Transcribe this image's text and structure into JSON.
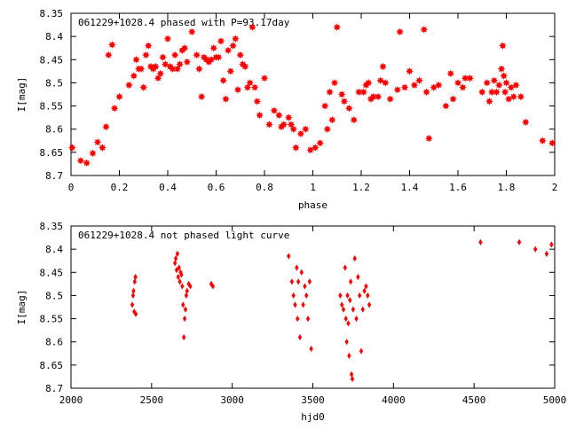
{
  "chart_data": [
    {
      "type": "scatter",
      "title": "061229+1028.4 phased with P=93.17day",
      "xlabel": "phase",
      "ylabel": "I[mag]",
      "xlim": [
        0,
        2
      ],
      "ylim": [
        8.35,
        8.7
      ],
      "y_inverted": true,
      "grid": false,
      "xticks": [
        0,
        0.2,
        0.4,
        0.6,
        0.8,
        1,
        1.2,
        1.4,
        1.6,
        1.8,
        2
      ],
      "xtick_labels": [
        "0",
        "0.2",
        "0.4",
        "0.6",
        "0.8",
        "1",
        "1.2",
        "1.4",
        "1.6",
        "1.8",
        "2"
      ],
      "yticks": [
        8.35,
        8.4,
        8.45,
        8.5,
        8.55,
        8.6,
        8.65,
        8.7
      ],
      "ytick_labels": [
        "8.35",
        "8.4",
        "8.45",
        "8.5",
        "8.55",
        "8.6",
        "8.65",
        "8.7"
      ],
      "marker_color": "#ff0000",
      "marker": "star",
      "series": [
        {
          "x": [
            0.005,
            0.04,
            0.065,
            0.09,
            0.11,
            0.13,
            0.145,
            0.155,
            0.17,
            0.18,
            0.2,
            0.24,
            0.26,
            0.27,
            0.28,
            0.29,
            0.3,
            0.31,
            0.32,
            0.33,
            0.34,
            0.35,
            0.36,
            0.37,
            0.38,
            0.39,
            0.4,
            0.41,
            0.42,
            0.43,
            0.44,
            0.45,
            0.46,
            0.47,
            0.48,
            0.5,
            0.52,
            0.53,
            0.54,
            0.55,
            0.56,
            0.57,
            0.58,
            0.59,
            0.6,
            0.61,
            0.62,
            0.63,
            0.64,
            0.65,
            0.66,
            0.67,
            0.68,
            0.69,
            0.7,
            0.71,
            0.72,
            0.73,
            0.74,
            0.75,
            0.76,
            0.77,
            0.78,
            0.8,
            0.82,
            0.84,
            0.86,
            0.87,
            0.88,
            0.9,
            0.91,
            0.92,
            0.93,
            0.95,
            0.97,
            0.99,
            1.01,
            1.03,
            1.05,
            1.06,
            1.07,
            1.08,
            1.09,
            1.1,
            1.12,
            1.13,
            1.15,
            1.17,
            1.19,
            1.21,
            1.22,
            1.23,
            1.24,
            1.25,
            1.27,
            1.28,
            1.29,
            1.3,
            1.32,
            1.35,
            1.36,
            1.38,
            1.4,
            1.42,
            1.44,
            1.46,
            1.47,
            1.48,
            1.5,
            1.52,
            1.55,
            1.57,
            1.58,
            1.6,
            1.62,
            1.63,
            1.65,
            1.7,
            1.72,
            1.73,
            1.74,
            1.75,
            1.76,
            1.77,
            1.78,
            1.785,
            1.79,
            1.795,
            1.8,
            1.81,
            1.82,
            1.83,
            1.84,
            1.86,
            1.88,
            1.95,
            1.99
          ],
          "y": [
            8.64,
            8.668,
            8.673,
            8.652,
            8.628,
            8.64,
            8.595,
            8.44,
            8.418,
            8.555,
            8.53,
            8.505,
            8.485,
            8.45,
            8.47,
            8.47,
            8.51,
            8.44,
            8.42,
            8.465,
            8.47,
            8.465,
            8.49,
            8.48,
            8.445,
            8.46,
            8.405,
            8.465,
            8.47,
            8.44,
            8.47,
            8.46,
            8.43,
            8.425,
            8.455,
            8.39,
            8.44,
            8.47,
            8.53,
            8.445,
            8.45,
            8.455,
            8.45,
            8.425,
            8.445,
            8.445,
            8.41,
            8.495,
            8.535,
            8.43,
            8.475,
            8.42,
            8.405,
            8.515,
            8.44,
            8.46,
            8.465,
            8.51,
            8.5,
            8.38,
            8.51,
            8.54,
            8.57,
            8.49,
            8.59,
            8.56,
            8.57,
            8.595,
            8.59,
            8.575,
            8.59,
            8.6,
            8.64,
            8.61,
            8.6,
            8.645,
            8.64,
            8.63,
            8.55,
            8.6,
            8.52,
            8.58,
            8.5,
            8.38,
            8.525,
            8.54,
            8.555,
            8.58,
            8.52,
            8.52,
            8.505,
            8.5,
            8.535,
            8.53,
            8.53,
            8.495,
            8.465,
            8.5,
            8.535,
            8.515,
            8.39,
            8.51,
            8.475,
            8.505,
            8.495,
            8.385,
            8.52,
            8.62,
            8.51,
            8.505,
            8.55,
            8.48,
            8.535,
            8.5,
            8.51,
            8.49,
            8.49,
            8.52,
            8.5,
            8.54,
            8.52,
            8.495,
            8.52,
            8.505,
            8.47,
            8.42,
            8.485,
            8.52,
            8.5,
            8.535,
            8.51,
            8.53,
            8.505,
            8.53,
            8.585,
            8.625,
            8.63
          ]
        }
      ]
    },
    {
      "type": "scatter",
      "title": "061229+1028.4 not phased light curve",
      "xlabel": "hjd0",
      "ylabel": "I[mag]",
      "xlim": [
        2000,
        5000
      ],
      "ylim": [
        8.35,
        8.7
      ],
      "y_inverted": true,
      "grid": false,
      "xticks": [
        2000,
        2500,
        3000,
        3500,
        4000,
        4500,
        5000
      ],
      "xtick_labels": [
        "2000",
        "2500",
        "3000",
        "3500",
        "4000",
        "4500",
        "5000"
      ],
      "yticks": [
        8.35,
        8.4,
        8.45,
        8.5,
        8.55,
        8.6,
        8.65,
        8.7
      ],
      "ytick_labels": [
        "8.35",
        "8.4",
        "8.45",
        "8.5",
        "8.55",
        "8.6",
        "8.65",
        "8.7"
      ],
      "marker_color": "#ff0000",
      "marker": "diamond",
      "series": [
        {
          "x": [
            2380,
            2385,
            2388,
            2392,
            2395,
            2400,
            2402,
            2645,
            2650,
            2655,
            2660,
            2665,
            2670,
            2675,
            2680,
            2685,
            2690,
            2695,
            2700,
            2705,
            2710,
            2715,
            2720,
            2730,
            2740,
            2870,
            2880,
            3350,
            3370,
            3380,
            3390,
            3400,
            3405,
            3410,
            3420,
            3430,
            3440,
            3450,
            3460,
            3470,
            3480,
            3490,
            3670,
            3680,
            3690,
            3700,
            3705,
            3710,
            3715,
            3720,
            3725,
            3730,
            3735,
            3740,
            3745,
            3750,
            3760,
            3770,
            3780,
            3790,
            3800,
            3810,
            3820,
            3830,
            3840,
            3850,
            4540,
            4780,
            4880,
            4950,
            4980
          ],
          "y": [
            8.52,
            8.5,
            8.49,
            8.535,
            8.47,
            8.46,
            8.54,
            8.43,
            8.42,
            8.445,
            8.41,
            8.46,
            8.44,
            8.47,
            8.45,
            8.455,
            8.48,
            8.52,
            8.59,
            8.55,
            8.53,
            8.5,
            8.49,
            8.475,
            8.48,
            8.475,
            8.48,
            8.415,
            8.47,
            8.5,
            8.52,
            8.44,
            8.55,
            8.47,
            8.59,
            8.45,
            8.52,
            8.48,
            8.5,
            8.55,
            8.47,
            8.615,
            8.5,
            8.52,
            8.53,
            8.44,
            8.55,
            8.6,
            8.5,
            8.56,
            8.63,
            8.51,
            8.47,
            8.67,
            8.68,
            8.53,
            8.42,
            8.55,
            8.46,
            8.5,
            8.62,
            8.53,
            8.49,
            8.48,
            8.5,
            8.52,
            8.385,
            8.385,
            8.4,
            8.41,
            8.39
          ]
        }
      ]
    }
  ]
}
